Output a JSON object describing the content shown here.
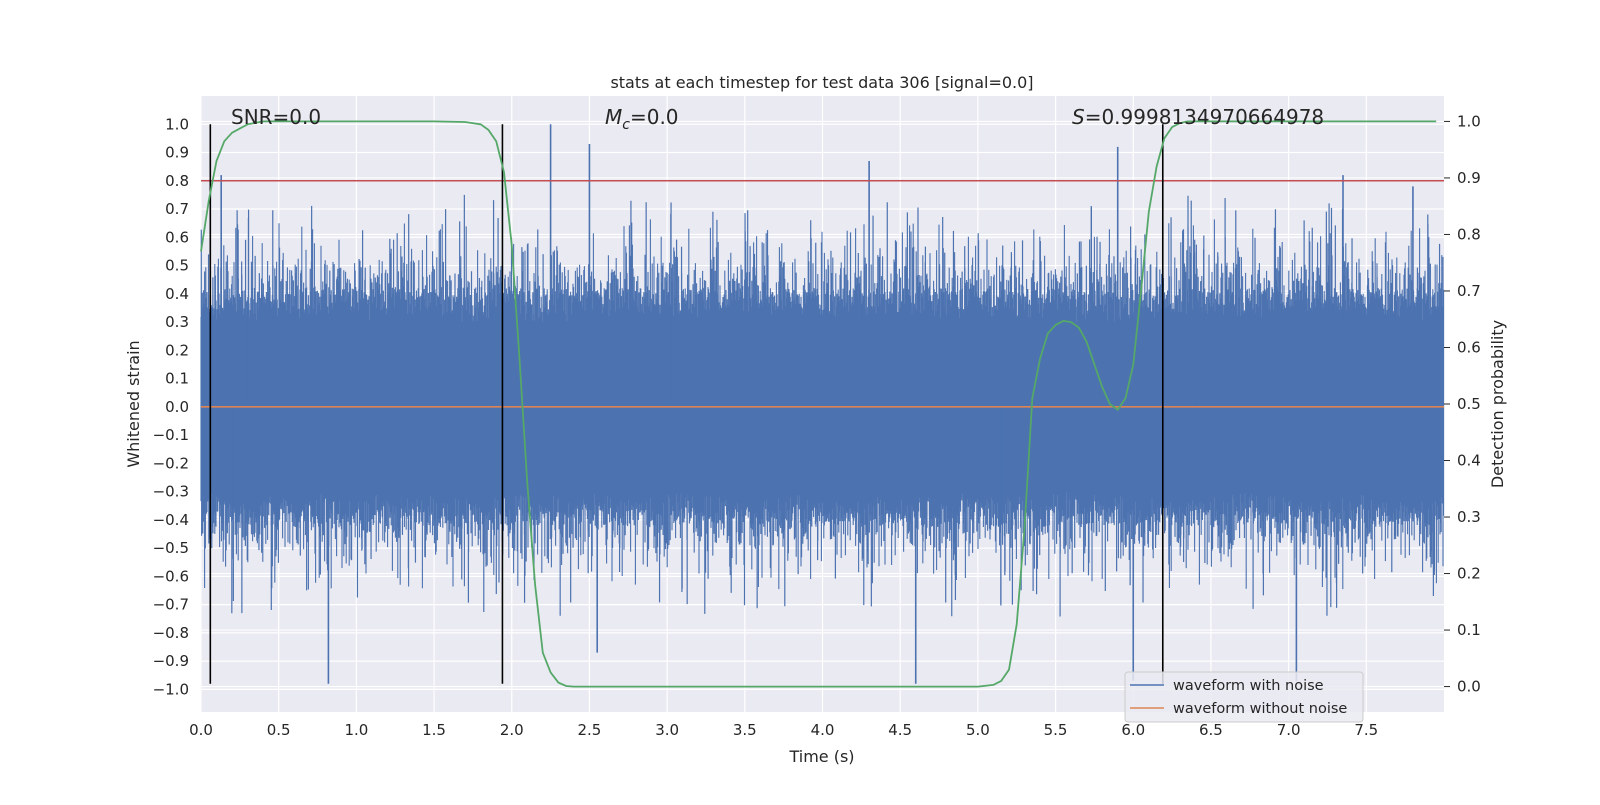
{
  "chart_data": {
    "type": "line",
    "title": "stats at each timestep for test data 306 [signal=0.0]",
    "xlabel": "Time (s)",
    "ylabel": "Whitened strain",
    "ylabel_right": "Detection probability",
    "xlim": [
      0.0,
      8.0
    ],
    "ylim": [
      -1.08,
      1.1
    ],
    "ylim_right": [
      -0.045,
      1.045
    ],
    "x_ticks": [
      0.0,
      0.5,
      1.0,
      1.5,
      2.0,
      2.5,
      3.0,
      3.5,
      4.0,
      4.5,
      5.0,
      5.5,
      6.0,
      6.5,
      7.0,
      7.5
    ],
    "x_tick_labels": [
      "0.0",
      "0.5",
      "1.0",
      "1.5",
      "2.0",
      "2.5",
      "3.0",
      "3.5",
      "4.0",
      "4.5",
      "5.0",
      "5.5",
      "6.0",
      "6.5",
      "7.0",
      "7.5"
    ],
    "y_ticks": [
      -1.0,
      -0.9,
      -0.8,
      -0.7,
      -0.6,
      -0.5,
      -0.4,
      -0.3,
      -0.2,
      -0.1,
      0.0,
      0.1,
      0.2,
      0.3,
      0.4,
      0.5,
      0.6,
      0.7,
      0.8,
      0.9,
      1.0
    ],
    "y_tick_labels": [
      "−1.0",
      "−0.9",
      "−0.8",
      "−0.7",
      "−0.6",
      "−0.5",
      "−0.4",
      "−0.3",
      "−0.2",
      "−0.1",
      "0.0",
      "0.1",
      "0.2",
      "0.3",
      "0.4",
      "0.5",
      "0.6",
      "0.7",
      "0.8",
      "0.9",
      "1.0"
    ],
    "y_right_ticks": [
      0.0,
      0.1,
      0.2,
      0.3,
      0.4,
      0.5,
      0.6,
      0.7,
      0.8,
      0.9,
      1.0
    ],
    "y_right_tick_labels": [
      "0.0",
      "0.1",
      "0.2",
      "0.3",
      "0.4",
      "0.5",
      "0.6",
      "0.7",
      "0.8",
      "0.9",
      "1.0"
    ],
    "grid": true,
    "annotations": {
      "snr": "SNR=0.0",
      "mc_symbol": "M",
      "mc_sub": "c",
      "mc_value": "=0.0",
      "s_symbol": "S",
      "s_value": "=0.9998134970664978"
    },
    "threshold": {
      "y": 0.8,
      "color": "#c44e52"
    },
    "vertical_markers": {
      "x": [
        0.06,
        1.94,
        6.19
      ],
      "ymin": -0.98,
      "ymax": 1.0,
      "color": "#000000"
    },
    "legend": {
      "position": "lower-right",
      "entries": [
        {
          "label": "waveform with noise",
          "color": "#4c72b0"
        },
        {
          "label": "waveform without noise",
          "color": "#dd8452"
        }
      ]
    },
    "series": [
      {
        "name": "waveform with noise",
        "axis": "left",
        "style": "dense-noise",
        "color": "#4c72b0",
        "envelope_typical": [
          -0.42,
          0.42
        ],
        "spike_peaks": [
          {
            "x": 0.13,
            "y": 0.82
          },
          {
            "x": 0.82,
            "y": -0.98
          },
          {
            "x": 2.25,
            "y": 1.0
          },
          {
            "x": 2.5,
            "y": 0.93
          },
          {
            "x": 2.55,
            "y": -0.87
          },
          {
            "x": 4.3,
            "y": 0.87
          },
          {
            "x": 4.6,
            "y": -0.98
          },
          {
            "x": 5.9,
            "y": 0.92
          },
          {
            "x": 6.0,
            "y": -0.97
          },
          {
            "x": 7.05,
            "y": -0.97
          },
          {
            "x": 7.35,
            "y": 0.82
          },
          {
            "x": 7.8,
            "y": 0.78
          }
        ]
      },
      {
        "name": "waveform without noise",
        "axis": "left",
        "color": "#dd8452",
        "x": [
          0.0,
          8.0
        ],
        "y": [
          0.0,
          0.0
        ]
      },
      {
        "name": "detection probability",
        "axis": "right",
        "color": "#55a868",
        "x": [
          0.0,
          0.05,
          0.1,
          0.15,
          0.2,
          0.3,
          0.4,
          0.6,
          1.0,
          1.5,
          1.7,
          1.8,
          1.85,
          1.9,
          1.95,
          2.0,
          2.05,
          2.1,
          2.15,
          2.2,
          2.25,
          2.3,
          2.35,
          2.4,
          2.5,
          3.0,
          4.0,
          5.0,
          5.1,
          5.15,
          5.2,
          5.25,
          5.3,
          5.35,
          5.4,
          5.45,
          5.5,
          5.55,
          5.6,
          5.65,
          5.7,
          5.75,
          5.8,
          5.85,
          5.9,
          5.95,
          6.0,
          6.05,
          6.1,
          6.15,
          6.2,
          6.25,
          6.3,
          6.35,
          6.4,
          6.5,
          7.0,
          7.5,
          7.95
        ],
        "y": [
          0.77,
          0.86,
          0.93,
          0.965,
          0.98,
          0.995,
          1.0,
          1.0,
          1.0,
          1.0,
          0.999,
          0.995,
          0.985,
          0.965,
          0.91,
          0.78,
          0.58,
          0.36,
          0.18,
          0.06,
          0.025,
          0.007,
          0.001,
          0.0,
          0.0,
          0.0,
          0.0,
          0.0,
          0.003,
          0.01,
          0.03,
          0.11,
          0.28,
          0.51,
          0.58,
          0.625,
          0.64,
          0.647,
          0.645,
          0.635,
          0.61,
          0.57,
          0.53,
          0.5,
          0.49,
          0.51,
          0.57,
          0.7,
          0.84,
          0.92,
          0.97,
          0.99,
          0.997,
          1.0,
          1.0,
          1.0,
          1.0,
          1.0,
          1.0
        ]
      }
    ]
  }
}
